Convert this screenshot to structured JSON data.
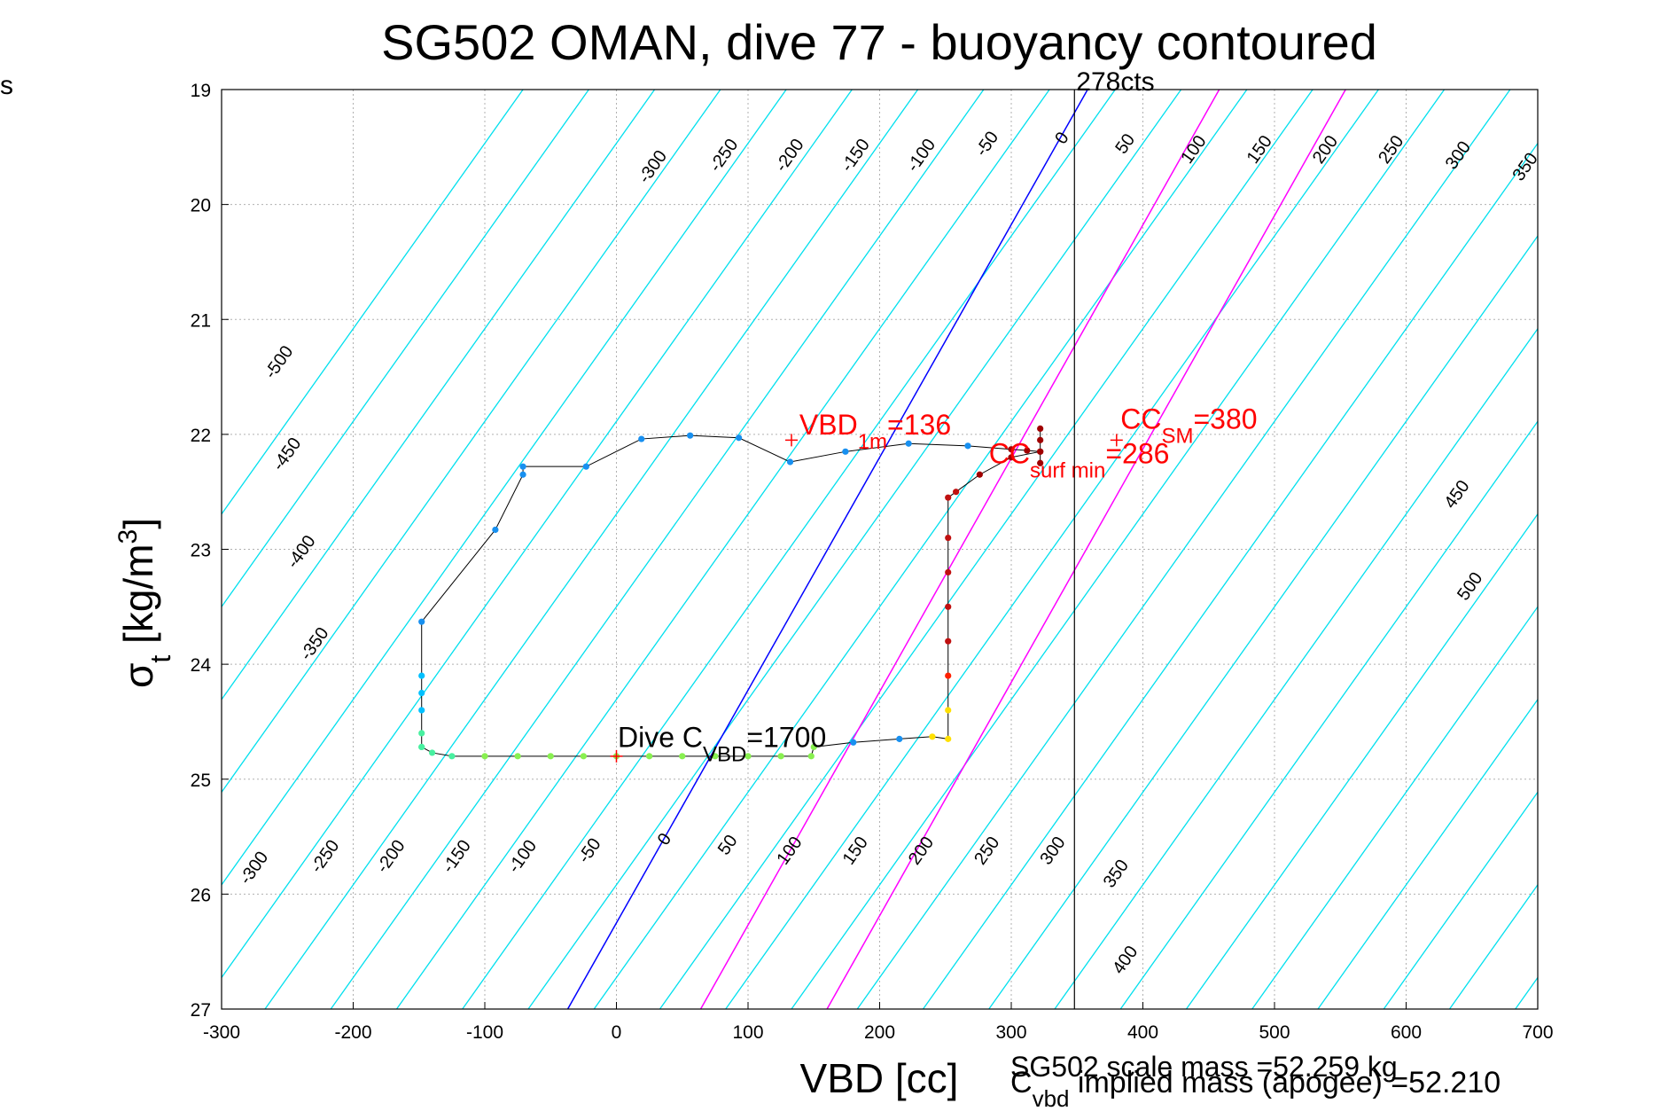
{
  "stray_label": "s",
  "chart_data": {
    "type": "line",
    "title": "SG502 OMAN, dive 77 - buoyancy contoured",
    "xlabel": "VBD [cc]",
    "ylabel_main": "σ",
    "ylabel_sub": "t",
    "ylabel_unit": "[kg/m",
    "ylabel_sup": "3",
    "ylabel_close": "]",
    "xlim": [
      -300,
      700
    ],
    "ylim": [
      19,
      27
    ],
    "y_reversed": true,
    "grid": true,
    "x_ticks": [
      -300,
      -200,
      -100,
      0,
      100,
      200,
      300,
      400,
      500,
      600,
      700
    ],
    "y_ticks": [
      19,
      20,
      21,
      22,
      23,
      24,
      25,
      26,
      27
    ],
    "contour_slope": 62,
    "contour_values": [
      -550,
      -500,
      -450,
      -400,
      -350,
      -300,
      -250,
      -200,
      -150,
      -100,
      -50,
      0,
      50,
      100,
      150,
      200,
      250,
      300,
      350,
      400,
      450,
      500,
      550,
      600,
      650,
      700,
      750
    ],
    "contour_labels_top": [
      {
        "v": "-300",
        "x": 31,
        "y": 19.7
      },
      {
        "v": "-250",
        "x": 85,
        "y": 19.6
      },
      {
        "v": "-200",
        "x": 135,
        "y": 19.6
      },
      {
        "v": "-150",
        "x": 185,
        "y": 19.6
      },
      {
        "v": "-100",
        "x": 235,
        "y": 19.6
      },
      {
        "v": "-50",
        "x": 285,
        "y": 19.5
      },
      {
        "v": "0",
        "x": 342,
        "y": 19.45
      },
      {
        "v": "50",
        "x": 390,
        "y": 19.5
      },
      {
        "v": "100",
        "x": 442,
        "y": 19.55
      },
      {
        "v": "150",
        "x": 492,
        "y": 19.55
      },
      {
        "v": "200",
        "x": 542,
        "y": 19.55
      },
      {
        "v": "250",
        "x": 592,
        "y": 19.55
      },
      {
        "v": "300",
        "x": 643,
        "y": 19.6
      },
      {
        "v": "350",
        "x": 694,
        "y": 19.7
      }
    ],
    "contour_labels_left": [
      {
        "v": "-500",
        "x": -253,
        "y": 21.4
      },
      {
        "v": "-450",
        "x": -247,
        "y": 22.2
      },
      {
        "v": "-400",
        "x": -236,
        "y": 23.05
      },
      {
        "v": "-350",
        "x": -226,
        "y": 23.85
      }
    ],
    "contour_labels_right": [
      {
        "v": "450",
        "x": 642,
        "y": 22.55
      },
      {
        "v": "500",
        "x": 652,
        "y": 23.35
      }
    ],
    "contour_labels_bottom": [
      {
        "v": "-300",
        "x": -272,
        "y": 25.8
      },
      {
        "v": "-250",
        "x": -218,
        "y": 25.7
      },
      {
        "v": "-200",
        "x": -168,
        "y": 25.7
      },
      {
        "v": "-150",
        "x": -118,
        "y": 25.7
      },
      {
        "v": "-100",
        "x": -68,
        "y": 25.7
      },
      {
        "v": "-50",
        "x": -17,
        "y": 25.65
      },
      {
        "v": "0",
        "x": 40,
        "y": 25.55
      },
      {
        "v": "50",
        "x": 88,
        "y": 25.6
      },
      {
        "v": "100",
        "x": 135,
        "y": 25.65
      },
      {
        "v": "150",
        "x": 185,
        "y": 25.65
      },
      {
        "v": "200",
        "x": 235,
        "y": 25.65
      },
      {
        "v": "250",
        "x": 285,
        "y": 25.65
      },
      {
        "v": "300",
        "x": 335,
        "y": 25.65
      },
      {
        "v": "350",
        "x": 383,
        "y": 25.85
      },
      {
        "v": "400",
        "x": 390,
        "y": 26.6
      }
    ],
    "special_lines": [
      {
        "name": "blue",
        "color": "#0000ff",
        "x_bottom": -37,
        "x_top": 358
      },
      {
        "name": "magenta1",
        "color": "#ff00ff",
        "x_bottom": 64,
        "x_top": 458
      },
      {
        "name": "magenta2",
        "color": "#ff00ff",
        "x_bottom": 160,
        "x_top": 554
      }
    ],
    "vertical_line": {
      "x": 348,
      "label": "278cts"
    },
    "dive_path": [
      [
        -148,
        24.72
      ],
      [
        -148,
        24.6
      ],
      [
        -148,
        24.4
      ],
      [
        -148,
        24.25
      ],
      [
        -148,
        24.1
      ],
      [
        -148,
        23.63
      ],
      [
        -92,
        22.83
      ],
      [
        -71,
        22.35
      ],
      [
        -71,
        22.28
      ],
      [
        -23,
        22.28
      ],
      [
        19,
        22.04
      ],
      [
        56,
        22.01
      ],
      [
        93,
        22.03
      ],
      [
        132,
        22.24
      ],
      [
        174,
        22.15
      ],
      [
        222,
        22.08
      ],
      [
        267,
        22.1
      ],
      [
        300,
        22.13
      ],
      [
        312,
        22.14
      ],
      [
        322,
        22.15
      ],
      [
        322,
        21.95
      ],
      [
        322,
        22.05
      ],
      [
        322,
        22.25
      ],
      [
        322,
        22.15
      ],
      [
        300,
        22.2
      ],
      [
        276,
        22.35
      ],
      [
        258,
        22.5
      ],
      [
        252,
        22.55
      ],
      [
        252,
        22.9
      ],
      [
        252,
        23.2
      ],
      [
        252,
        23.5
      ],
      [
        252,
        23.8
      ],
      [
        252,
        24.1
      ],
      [
        252,
        24.4
      ],
      [
        252,
        24.65
      ],
      [
        240,
        24.63
      ],
      [
        215,
        24.65
      ],
      [
        180,
        24.68
      ],
      [
        150,
        24.72
      ],
      [
        148,
        24.8
      ],
      [
        125,
        24.8
      ],
      [
        100,
        24.8
      ],
      [
        75,
        24.8
      ],
      [
        50,
        24.8
      ],
      [
        25,
        24.8
      ],
      [
        0,
        24.8
      ],
      [
        -25,
        24.8
      ],
      [
        -50,
        24.8
      ],
      [
        -75,
        24.8
      ],
      [
        -100,
        24.8
      ],
      [
        -125,
        24.8
      ],
      [
        -140,
        24.77
      ],
      [
        -148,
        24.72
      ]
    ],
    "markers": [
      {
        "x": 133,
        "y": 22.05,
        "color": "#ff0000"
      },
      {
        "x": 380,
        "y": 22.05,
        "color": "#ff0000"
      },
      {
        "x": 0,
        "y": 24.8,
        "color": "#ff0000"
      }
    ],
    "annotations": [
      {
        "name": "vbd-1m",
        "main": "VBD",
        "sub": "1m",
        "rest": "=136",
        "x": 139,
        "y": 22.0,
        "color": "#ff0000"
      },
      {
        "name": "cc-surf-min",
        "main": "CC",
        "sub": "surf min",
        "rest": "=286",
        "x": 283,
        "y": 22.25,
        "color": "#ff0000"
      },
      {
        "name": "cc-sm",
        "main": "CC",
        "sub": "SM",
        "rest": "=380",
        "x": 383,
        "y": 21.95,
        "color": "#ff0000"
      },
      {
        "name": "dive-cvbd",
        "main": "Dive C",
        "sub": "VBD",
        "rest": "=1700",
        "x": 1,
        "y": 24.72,
        "color": "#000000"
      }
    ],
    "footer_line1": "SG502 scale mass =52.259 kg",
    "footer_c": "C",
    "footer_sub": "vbd",
    "footer_rest": " implied mass (apogee) =52.210"
  }
}
